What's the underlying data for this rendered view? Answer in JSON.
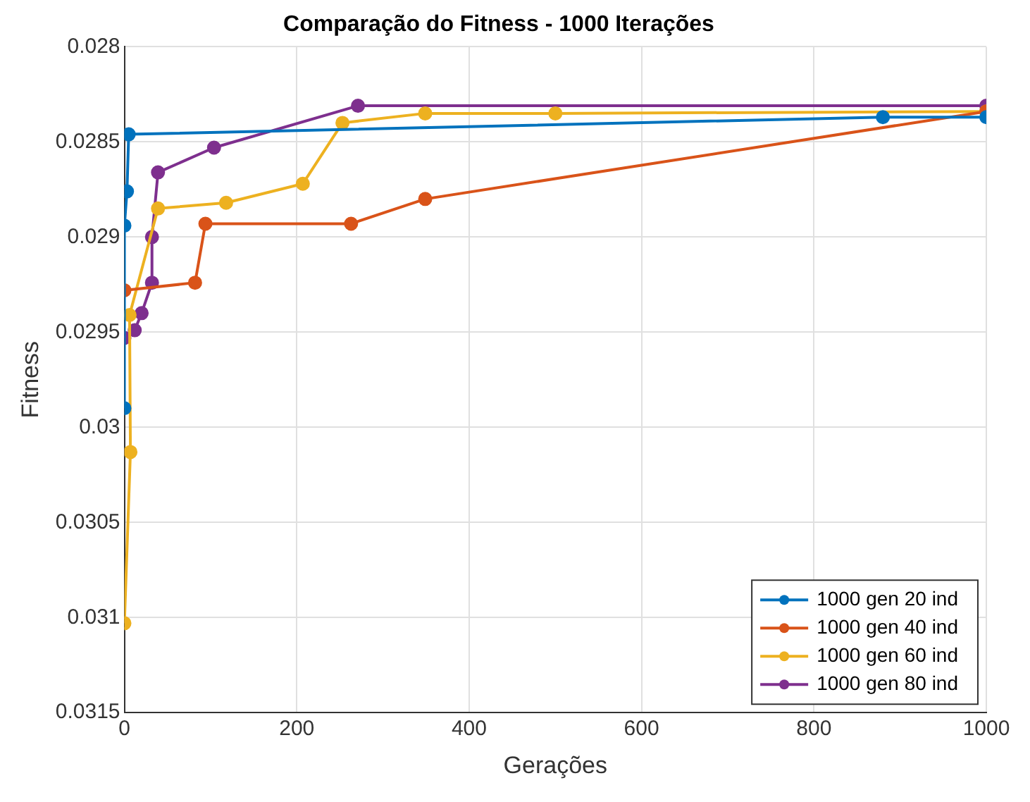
{
  "chart_data": {
    "type": "line",
    "title": "Comparação do Fitness - 1000 Iterações",
    "xlabel": "Gerações",
    "ylabel": "Fitness",
    "xlim": [
      0,
      1000
    ],
    "xticks": [
      0,
      200,
      400,
      600,
      800,
      1000
    ],
    "ylim": [
      0.0315,
      0.028
    ],
    "yticks": [
      0.028,
      0.0285,
      0.029,
      0.0295,
      0.03,
      0.0305,
      0.031,
      0.0315
    ],
    "grid": true,
    "legend": "bottom right",
    "marker": "circle",
    "line_style": "solid",
    "series": [
      {
        "name": "1000 gen 20 ind",
        "color": "#0072bd",
        "x": [
          0,
          0,
          3,
          5,
          880,
          1000
        ],
        "values": [
          0.0299,
          0.02894,
          0.02876,
          0.02846,
          0.02837,
          0.02837
        ]
      },
      {
        "name": "1000 gen 40 ind",
        "color": "#d95319",
        "x": [
          0,
          82,
          94,
          263,
          349,
          1000
        ],
        "values": [
          0.02928,
          0.02924,
          0.02893,
          0.02893,
          0.0288,
          0.02834
        ]
      },
      {
        "name": "1000 gen 60 ind",
        "color": "#edb120",
        "x": [
          0,
          7,
          6,
          39,
          118,
          207,
          253,
          349,
          500,
          1000
        ],
        "values": [
          0.03103,
          0.03013,
          0.02941,
          0.02885,
          0.02882,
          0.02872,
          0.0284,
          0.02835,
          0.02835,
          0.02834
        ]
      },
      {
        "name": "1000 gen 80 ind",
        "color": "#7e2f8e",
        "x": [
          0,
          12,
          20,
          32,
          32,
          39,
          104,
          271,
          1000
        ],
        "values": [
          0.02953,
          0.02949,
          0.0294,
          0.02924,
          0.029,
          0.02866,
          0.02853,
          0.02831,
          0.02831
        ]
      }
    ]
  }
}
